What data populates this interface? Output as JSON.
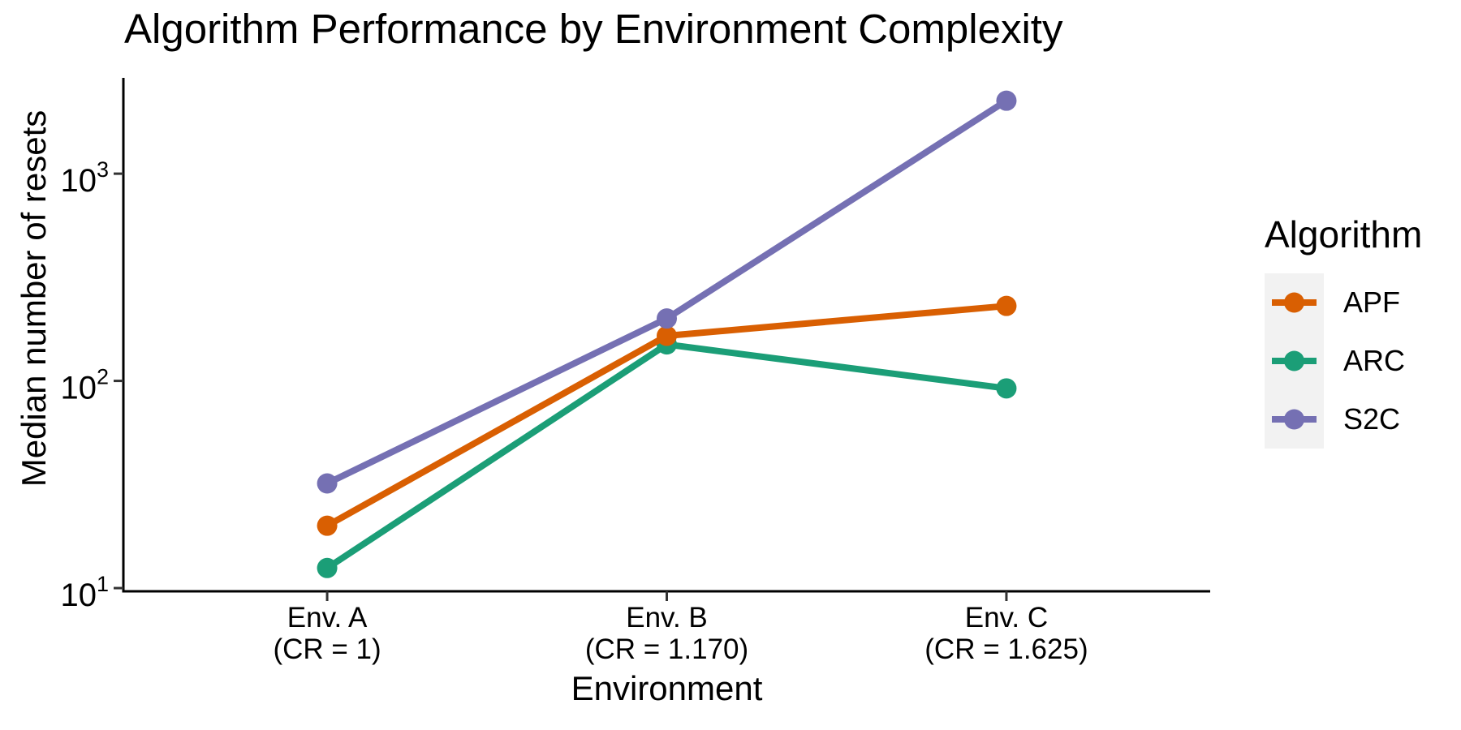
{
  "chart_data": {
    "type": "line",
    "title": "Algorithm Performance by Environment Complexity",
    "xlabel": "Environment",
    "ylabel": "Median number of resets",
    "legend_title": "Algorithm",
    "legend_position": "right",
    "y_scale": "log10",
    "ylim": [
      9.65,
      2900
    ],
    "grid": false,
    "yticks": [
      {
        "value": 1000,
        "base": "10",
        "exp": "3"
      },
      {
        "value": 100,
        "base": "10",
        "exp": "2"
      },
      {
        "value": 10,
        "base": "10",
        "exp": "1"
      }
    ],
    "categories": [
      {
        "name": "Env. A",
        "cr": "(CR = 1)"
      },
      {
        "name": "Env. B",
        "cr": "(CR = 1.170)"
      },
      {
        "name": "Env. C",
        "cr": "(CR = 1.625)"
      }
    ],
    "series": [
      {
        "name": "APF",
        "color": "#D95F02",
        "values": [
          20,
          165,
          230
        ]
      },
      {
        "name": "ARC",
        "color": "#1B9E77",
        "values": [
          12.5,
          150,
          92
        ]
      },
      {
        "name": "S2C",
        "color": "#7570B3",
        "values": [
          32,
          200,
          2250
        ]
      }
    ],
    "draw_order": [
      1,
      0,
      2
    ],
    "colors": {
      "axis": "#000000",
      "tick": "#333333",
      "text": "#000000",
      "legend_key_bg": "#F2F2F2",
      "background": "#FFFFFF"
    }
  }
}
